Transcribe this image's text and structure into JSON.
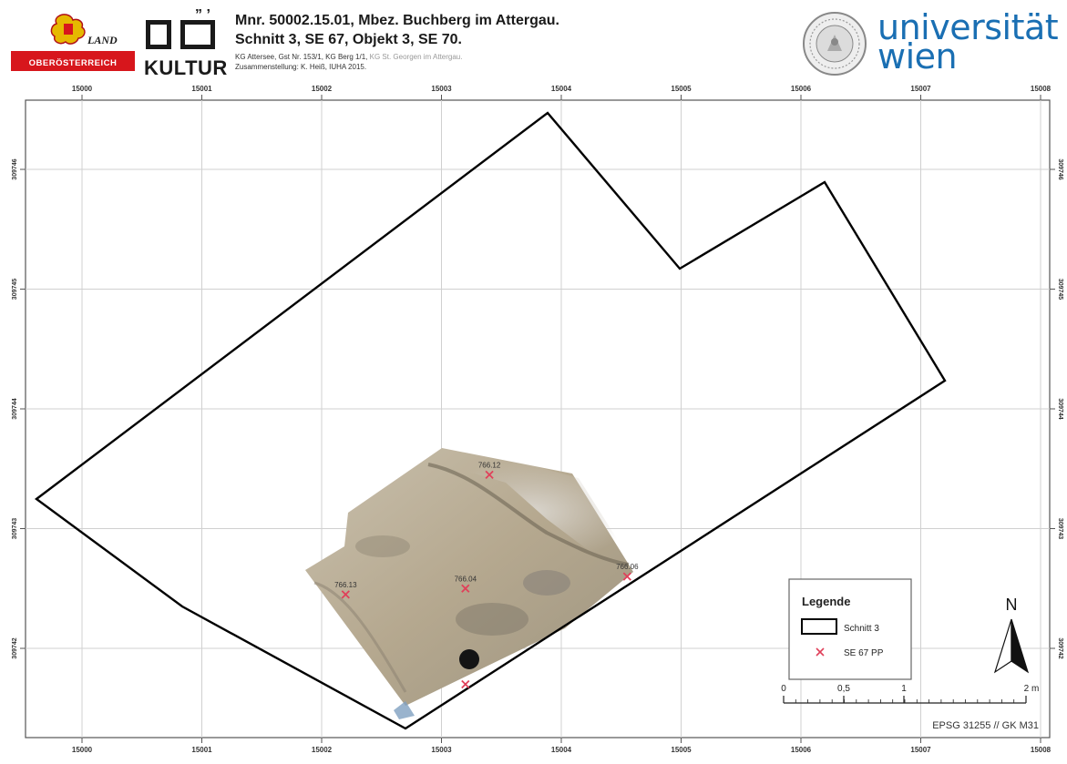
{
  "header": {
    "land_logo": {
      "word_land": "LAND",
      "word_region": "OBERÖSTERREICH",
      "colors": {
        "red": "#d7161c",
        "gold": "#e6b800"
      }
    },
    "kultur_logo": {
      "text": "KULTUR"
    },
    "title_line1": "Mnr. 50002.15.01, Mbez. Buchberg im Attergau.",
    "title_line2": "Schnitt 3, SE 67, Objekt 3, SE 70.",
    "meta_line1": "KG Attersee, Gst Nr. 153/1, KG Berg 1/1,",
    "meta_line1_grey": "KG St. Georgen im Attergau.",
    "meta_line2": "Zusammenstellung: K. Heiß, IUHA 2015.",
    "university": {
      "line1": "universität",
      "line2": "wien",
      "color": "#1a6fb3"
    }
  },
  "map": {
    "x_ticks": [
      "15000",
      "15001",
      "15002",
      "15003",
      "15004",
      "15005",
      "15006",
      "15007",
      "15008"
    ],
    "y_ticks": [
      "309746",
      "309745",
      "309744",
      "309743",
      "309742"
    ],
    "points": [
      {
        "label": "766.12",
        "x": 15003.4,
        "y": 309743.45
      },
      {
        "label": "766.13",
        "x": 15002.2,
        "y": 309742.45
      },
      {
        "label": "766.04",
        "x": 15003.2,
        "y": 309742.5
      },
      {
        "label": "766.06",
        "x": 15004.55,
        "y": 309742.6
      },
      {
        "label": "",
        "x": 15003.2,
        "y": 309741.7
      }
    ],
    "legend": {
      "title": "Legende",
      "items": [
        {
          "symbol": "polygon",
          "label": "Schnitt 3"
        },
        {
          "symbol": "x-marker",
          "label": "SE 67 PP"
        }
      ]
    },
    "scalebar": {
      "labels": [
        "0",
        "0,5",
        "1",
        "2 m"
      ]
    },
    "north_label": "N",
    "crs": "EPSG 31255 // GK M31",
    "colors": {
      "outline": "#000000",
      "marker": "#e0405a",
      "grid": "#d0d0d0"
    }
  }
}
